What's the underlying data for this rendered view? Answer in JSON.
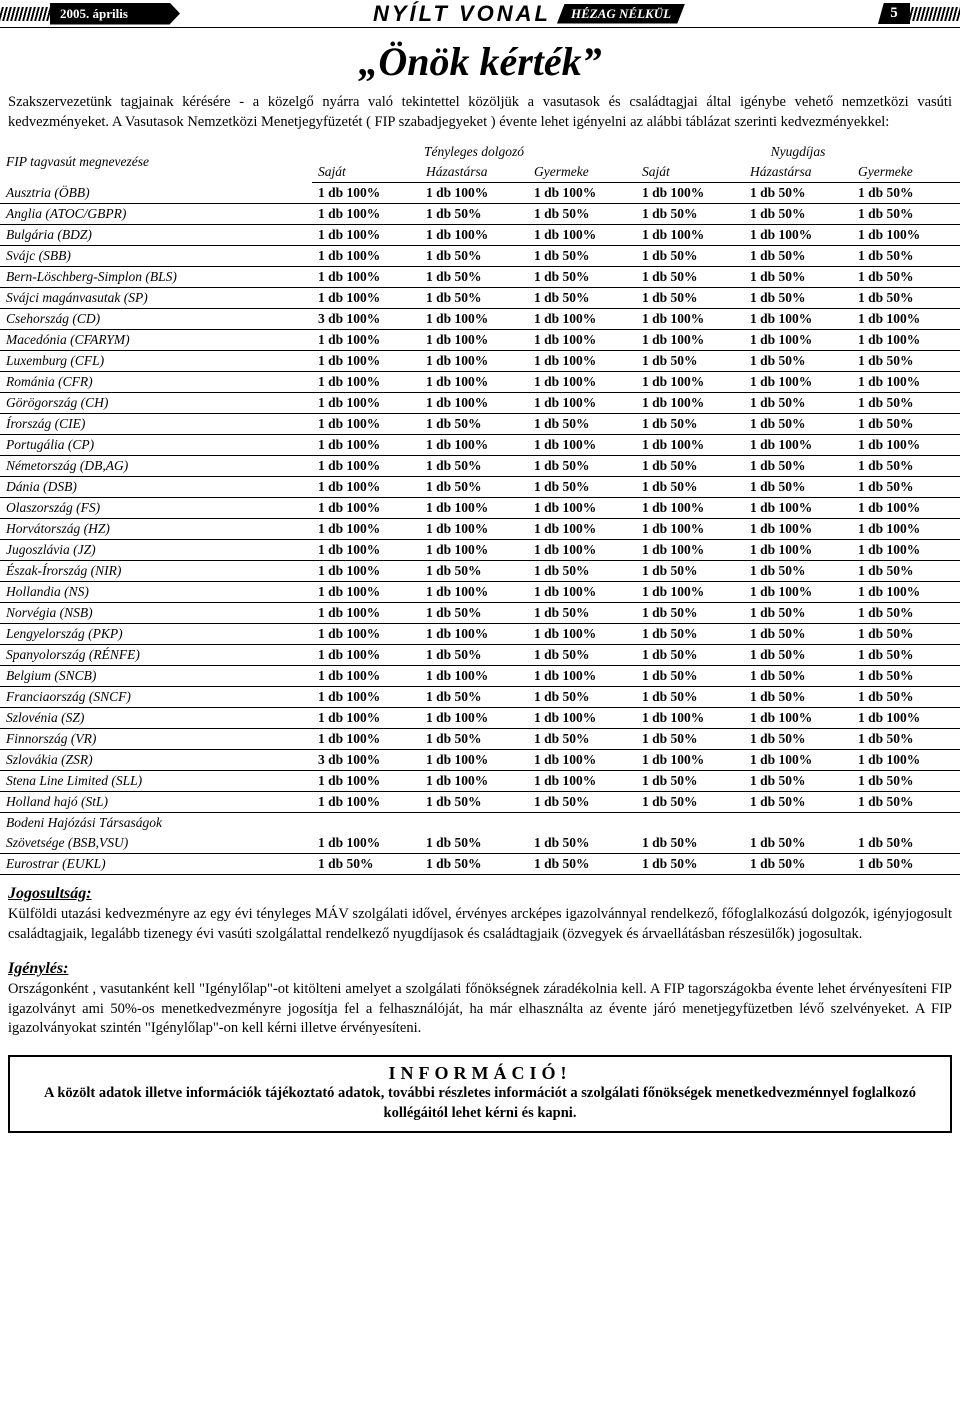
{
  "header": {
    "date": "2005. április",
    "masthead_title": "NYÍLT VONAL",
    "masthead_sub": "HÉZAG NÉLKÜL",
    "page_number": "5"
  },
  "title": "„Önök kérték”",
  "intro": "Szakszervezetünk tagjainak kérésére - a közelgő nyárra való tekintettel közöljük a vasutasok és családtagjai által igénybe vehető nemzetközi vasúti kedvezményeket.\nA Vasutasok Nemzetközi Menetjegyfüzetét ( FIP szabadjegyeket ) évente lehet igényelni az alábbi táblázat szerinti kedvezményekkel:",
  "table": {
    "head1": "FIP tagvasút megnevezése",
    "group_active": "Tényleges dolgozó",
    "group_retired": "Nyugdíjas",
    "sub_cols": [
      "Saját",
      "Házastársa",
      "Gyermeke",
      "Saját",
      "Házastársa",
      "Gyermeke"
    ],
    "rows": [
      {
        "name": "Ausztria (ÖBB)",
        "v": [
          "1 db 100%",
          "1 db 100%",
          "1 db 100%",
          "1 db 100%",
          "1 db 50%",
          "1 db 50%"
        ]
      },
      {
        "name": "Anglia (ATOC/GBPR)",
        "v": [
          "1 db 100%",
          "1 db 50%",
          "1 db 50%",
          "1 db 50%",
          "1 db 50%",
          "1 db 50%"
        ]
      },
      {
        "name": "Bulgária (BDZ)",
        "v": [
          "1 db 100%",
          "1 db 100%",
          "1 db 100%",
          "1 db 100%",
          "1 db 100%",
          "1 db 100%"
        ]
      },
      {
        "name": "Svájc (SBB)",
        "v": [
          "1 db 100%",
          "1 db 50%",
          "1 db 50%",
          "1 db 50%",
          "1 db 50%",
          "1 db 50%"
        ]
      },
      {
        "name": "Bern-Löschberg-Simplon (BLS)",
        "v": [
          "1 db 100%",
          "1 db 50%",
          "1 db 50%",
          "1 db 50%",
          "1 db 50%",
          "1 db 50%"
        ]
      },
      {
        "name": "Svájci magánvasutak (SP)",
        "v": [
          "1 db 100%",
          "1 db 50%",
          "1 db 50%",
          "1 db 50%",
          "1 db 50%",
          "1 db 50%"
        ]
      },
      {
        "name": "Csehország (CD)",
        "v": [
          "3 db 100%",
          "1 db 100%",
          "1 db 100%",
          "1 db 100%",
          "1 db 100%",
          "1 db 100%"
        ]
      },
      {
        "name": "Macedónia (CFARYM)",
        "v": [
          "1 db 100%",
          "1 db 100%",
          "1 db 100%",
          "1 db 100%",
          "1 db 100%",
          "1 db 100%"
        ]
      },
      {
        "name": "Luxemburg (CFL)",
        "v": [
          "1 db 100%",
          "1 db 100%",
          "1 db 100%",
          "1 db 50%",
          "1 db 50%",
          "1 db 50%"
        ]
      },
      {
        "name": "Románia (CFR)",
        "v": [
          "1 db 100%",
          "1 db 100%",
          "1 db 100%",
          "1 db 100%",
          "1 db 100%",
          "1 db 100%"
        ]
      },
      {
        "name": "Görögország (CH)",
        "v": [
          "1 db 100%",
          "1 db 100%",
          "1 db 100%",
          "1 db 100%",
          "1 db 50%",
          "1 db 50%"
        ]
      },
      {
        "name": "Írország (CIE)",
        "v": [
          "1 db 100%",
          "1 db 50%",
          "1 db 50%",
          "1 db 50%",
          "1 db 50%",
          "1 db 50%"
        ]
      },
      {
        "name": "Portugália (CP)",
        "v": [
          "1 db 100%",
          "1 db 100%",
          "1 db 100%",
          "1 db 100%",
          "1 db 100%",
          "1 db 100%"
        ]
      },
      {
        "name": "Németország (DB,AG)",
        "v": [
          "1 db 100%",
          "1 db 50%",
          "1 db 50%",
          "1 db 50%",
          "1 db 50%",
          "1 db 50%"
        ]
      },
      {
        "name": "Dánia (DSB)",
        "v": [
          "1 db 100%",
          "1 db 50%",
          "1 db 50%",
          "1 db 50%",
          "1 db 50%",
          "1 db 50%"
        ]
      },
      {
        "name": "Olaszország (FS)",
        "v": [
          "1 db 100%",
          "1 db 100%",
          "1 db 100%",
          "1 db 100%",
          "1 db 100%",
          "1 db 100%"
        ]
      },
      {
        "name": "Horvátország (HZ)",
        "v": [
          "1 db 100%",
          "1 db 100%",
          "1 db 100%",
          "1 db 100%",
          "1 db 100%",
          "1 db 100%"
        ]
      },
      {
        "name": "Jugoszlávia (JZ)",
        "v": [
          "1 db 100%",
          "1 db 100%",
          "1 db 100%",
          "1 db 100%",
          "1 db 100%",
          "1 db 100%"
        ]
      },
      {
        "name": "Észak-Írország (NIR)",
        "v": [
          "1 db 100%",
          "1 db 50%",
          "1 db 50%",
          "1 db 50%",
          "1 db 50%",
          "1 db 50%"
        ]
      },
      {
        "name": "Hollandia (NS)",
        "v": [
          "1 db 100%",
          "1 db 100%",
          "1 db 100%",
          "1 db 100%",
          "1 db 100%",
          "1 db 100%"
        ]
      },
      {
        "name": "Norvégia (NSB)",
        "v": [
          "1 db 100%",
          "1 db 50%",
          "1 db 50%",
          "1 db 50%",
          "1 db 50%",
          "1 db 50%"
        ]
      },
      {
        "name": "Lengyelország (PKP)",
        "v": [
          "1 db 100%",
          "1 db 100%",
          "1 db 100%",
          "1 db 50%",
          "1 db 50%",
          "1 db 50%"
        ]
      },
      {
        "name": "Spanyolország (RÉNFE)",
        "v": [
          "1 db 100%",
          "1 db 50%",
          "1 db 50%",
          "1 db 50%",
          "1 db 50%",
          "1 db 50%"
        ]
      },
      {
        "name": "Belgium (SNCB)",
        "v": [
          "1 db 100%",
          "1 db 100%",
          "1 db 100%",
          "1 db 50%",
          "1 db 50%",
          "1 db 50%"
        ]
      },
      {
        "name": "Franciaország (SNCF)",
        "v": [
          "1 db 100%",
          "1 db 50%",
          "1 db 50%",
          "1 db 50%",
          "1 db 50%",
          "1 db 50%"
        ]
      },
      {
        "name": "Szlovénia (SZ)",
        "v": [
          "1 db 100%",
          "1 db 100%",
          "1 db 100%",
          "1 db 100%",
          "1 db 100%",
          "1 db 100%"
        ]
      },
      {
        "name": "Finnország (VR)",
        "v": [
          "1 db 100%",
          "1 db 50%",
          "1 db 50%",
          "1 db 50%",
          "1 db 50%",
          "1 db 50%"
        ]
      },
      {
        "name": "Szlovákia (ZSR)",
        "v": [
          "3 db 100%",
          "1 db 100%",
          "1 db 100%",
          "1 db 100%",
          "1 db 100%",
          "1 db 100%"
        ]
      },
      {
        "name": "Stena Line Limited (SLL)",
        "v": [
          "1 db 100%",
          "1 db 100%",
          "1 db 100%",
          "1 db 50%",
          "1 db 50%",
          "1 db 50%"
        ]
      },
      {
        "name": "Holland hajó (StL)",
        "v": [
          "1 db 100%",
          "1 db 50%",
          "1 db 50%",
          "1 db 50%",
          "1 db 50%",
          "1 db 50%"
        ]
      }
    ],
    "split_row": {
      "line1": "Bodeni Hajózási Társaságok",
      "line2": "Szövetsége (BSB,VSU)",
      "v": [
        "1 db 100%",
        "1 db 50%",
        "1 db 50%",
        "1 db 50%",
        "1 db 50%",
        "1 db 50%"
      ]
    },
    "last_row": {
      "name": "Eurostrar (EUKL)",
      "v": [
        "1 db 50%",
        "1 db 50%",
        "1 db 50%",
        "1 db 50%",
        "1 db 50%",
        "1 db 50%"
      ]
    }
  },
  "eligibility": {
    "heading": "Jogosultság:",
    "text": "Külföldi utazási kedvezményre az egy évi tényleges MÁV szolgálati idővel, érvényes arcképes igazolvánnyal rendelkező, főfoglalkozású dolgozók, igényjogosult családtagjaik, legalább tizenegy évi vasúti szolgálattal rendelkező nyugdíjasok és családtagjaik (özvegyek és árvaellátásban részesülők) jogosultak."
  },
  "request": {
    "heading": "Igénylés:",
    "text": "Országonként , vasutanként kell \"Igénylőlap\"-ot kitölteni amelyet a szolgálati főnökségnek záradékolnia kell.\nA FIP tagországokba évente lehet érvényesíteni FIP igazolványt ami 50%-os menetkedvezményre jogosítja fel a felhasználóját, ha már elhasználta az évente járó menetjegyfüzetben lévő szelvényeket. A FIP igazolványokat szintén \"Igénylőlap\"-on kell kérni illetve érvényesíteni."
  },
  "info_box": {
    "title": "INFORMÁCIÓ!",
    "text": "A közölt adatok illetve információk tájékoztató adatok, további részletes információt a szolgálati főnökségek menetkedvezménnyel foglalkozó kollégáitól lehet kérni és kapni."
  }
}
